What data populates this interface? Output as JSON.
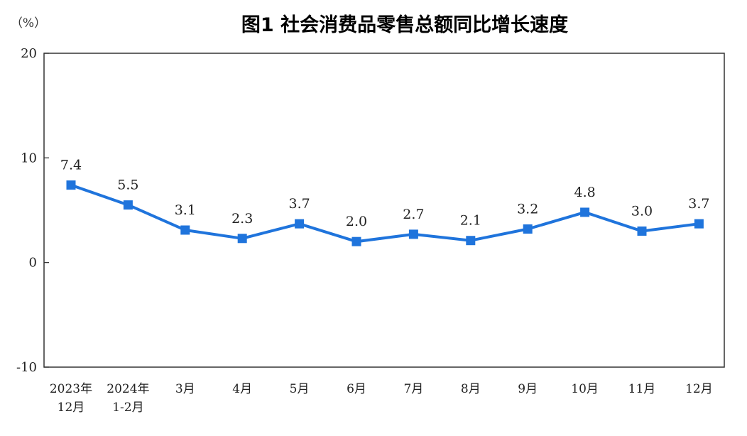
{
  "chart_data": {
    "type": "line",
    "title": "图1 社会消费品零售总额同比增长速度",
    "ylabel": "（%）",
    "xlabel": "",
    "ylim": [
      -10,
      20
    ],
    "yticks": [
      "20",
      "10",
      "0",
      "-10"
    ],
    "grid": false,
    "legend": "none",
    "categories": [
      [
        "2023年",
        "12月"
      ],
      [
        "2024年",
        "1-2月"
      ],
      [
        "3月"
      ],
      [
        "4月"
      ],
      [
        "5月"
      ],
      [
        "6月"
      ],
      [
        "7月"
      ],
      [
        "8月"
      ],
      [
        "9月"
      ],
      [
        "10月"
      ],
      [
        "11月"
      ],
      [
        "12月"
      ]
    ],
    "series": [
      {
        "values": [
          7.4,
          5.5,
          3.1,
          2.3,
          3.7,
          2.0,
          2.7,
          2.1,
          3.2,
          4.8,
          3.0,
          3.7
        ],
        "labels": [
          "7.4",
          "5.5",
          "3.1",
          "2.3",
          "3.7",
          "2.0",
          "2.7",
          "2.1",
          "3.2",
          "4.8",
          "3.0",
          "3.7"
        ]
      }
    ],
    "colors": {
      "line": "#1f74dc",
      "axis": "#333333"
    }
  }
}
